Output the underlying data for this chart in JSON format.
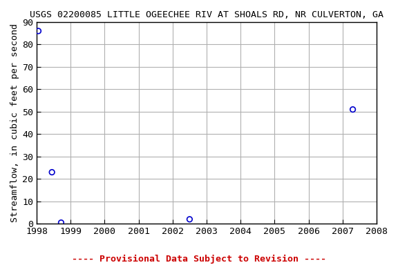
{
  "title": "USGS 02200085 LITTLE OGEECHEE RIV AT SHOALS RD, NR CULVERTON, GA",
  "ylabel": "Streamflow, in cubic feet per second",
  "footer": "---- Provisional Data Subject to Revision ----",
  "xlim": [
    1998,
    2008
  ],
  "ylim": [
    0,
    90
  ],
  "xticks": [
    1998,
    1999,
    2000,
    2001,
    2002,
    2003,
    2004,
    2005,
    2006,
    2007,
    2008
  ],
  "yticks": [
    0,
    10,
    20,
    30,
    40,
    50,
    60,
    70,
    80,
    90
  ],
  "data_x": [
    1998.05,
    1998.45,
    1998.72,
    2002.5,
    2007.3
  ],
  "data_y": [
    86,
    23,
    0.5,
    2,
    51
  ],
  "point_color": "#0000cc",
  "grid_color": "#b0b0b0",
  "bg_color": "#ffffff",
  "title_fontsize": 9.5,
  "label_fontsize": 9.5,
  "tick_fontsize": 9.5,
  "footer_fontsize": 9.5,
  "footer_color": "#cc0000"
}
